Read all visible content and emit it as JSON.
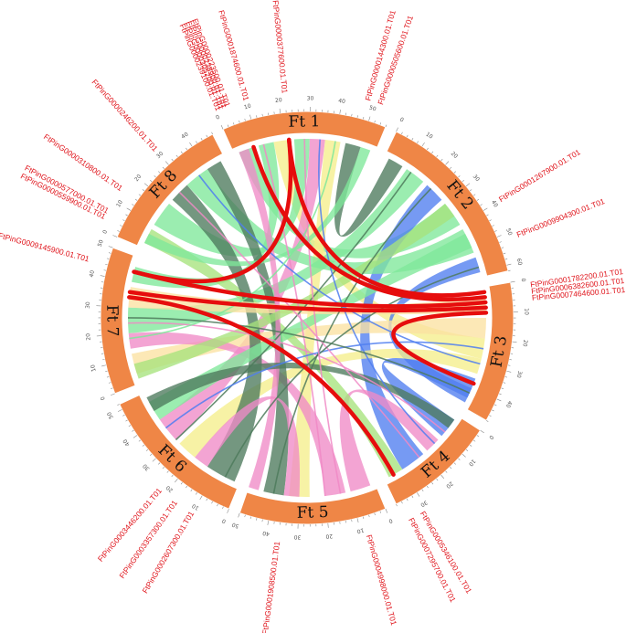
{
  "chromosomes": [
    {
      "id": "Ft1",
      "label": "Ft 1",
      "size_mb": 56
    },
    {
      "id": "Ft2",
      "label": "Ft 2",
      "size_mb": 62
    },
    {
      "id": "Ft3",
      "label": "Ft 3",
      "size_mb": 48
    },
    {
      "id": "Ft4",
      "label": "Ft 4",
      "size_mb": 38
    },
    {
      "id": "Ft5",
      "label": "Ft 5",
      "size_mb": 50
    },
    {
      "id": "Ft6",
      "label": "Ft 6",
      "size_mb": 52
    },
    {
      "id": "Ft7",
      "label": "Ft 7",
      "size_mb": 50
    },
    {
      "id": "Ft8",
      "label": "Ft 8",
      "size_mb": 48
    }
  ],
  "tick_step_mb": 10,
  "colors": {
    "chromosome": "#ef8646",
    "highlight_link": "#e60d0d",
    "link_palette": [
      "#7fe89a",
      "#f5ee8c",
      "#4d7a5c",
      "#f08ac6",
      "#4f7ef0",
      "#a6e37c",
      "#fbe1a1"
    ]
  },
  "genes": [
    {
      "label": "FtPinG0001874600.01.T01",
      "chr": "Ft1",
      "pos_mb": 10
    },
    {
      "label": "FtPinG0000377600.01.T01",
      "chr": "Ft1",
      "pos_mb": 22
    },
    {
      "label": "FtPinG0000144300.01.T01",
      "chr": "Ft1",
      "pos_mb": 48
    },
    {
      "label": "FtPinG0000505600.01.T01",
      "chr": "Ft1",
      "pos_mb": 52
    },
    {
      "label": "FtPinG0001267900.01.T01",
      "chr": "Ft2",
      "pos_mb": 40
    },
    {
      "label": "FtPinG0009904300.01.T01",
      "chr": "Ft2",
      "pos_mb": 52
    },
    {
      "label": "FtPinG0001782200.01.T01",
      "chr": "Ft3",
      "pos_mb": 2
    },
    {
      "label": "FtPinG0006382600.01.T01",
      "chr": "Ft3",
      "pos_mb": 4
    },
    {
      "label": "FtPinG0007464600.01.T01",
      "chr": "Ft3",
      "pos_mb": 6
    },
    {
      "label": "FtPinG0005346100.01.T01",
      "chr": "Ft4",
      "pos_mb": 32
    },
    {
      "label": "FtPinG0007295700.01.T01",
      "chr": "Ft4",
      "pos_mb": 36
    },
    {
      "label": "FtPinG0004998000.01.T01",
      "chr": "Ft5",
      "pos_mb": 8
    },
    {
      "label": "FtPinG0001908500.01.T01",
      "chr": "Ft5",
      "pos_mb": 36
    },
    {
      "label": "FtPinG0003446200.01.T01",
      "chr": "Ft6",
      "pos_mb": 22
    },
    {
      "label": "FtPinG0003357300.01.T01",
      "chr": "Ft6",
      "pos_mb": 16
    },
    {
      "label": "FtPinG0002607300.01.T01",
      "chr": "Ft6",
      "pos_mb": 10
    },
    {
      "label": "FtPinG0009145900.01.T01",
      "chr": "Ft7",
      "pos_mb": 44
    },
    {
      "label": "FtPinG0000310800.01.T01",
      "chr": "Ft8",
      "pos_mb": 14
    },
    {
      "label": "FtPinG0000577000.01.T01",
      "chr": "Ft8",
      "pos_mb": 6
    },
    {
      "label": "FtPinG0000559900.01.T01",
      "chr": "Ft8",
      "pos_mb": 4
    },
    {
      "label": "FtPinG0000246200.01.T01",
      "chr": "Ft8",
      "pos_mb": 30
    },
    {
      "label": "FtPinG0000239100.01.T01",
      "chr": "Ft1",
      "pos_mb": 1
    },
    {
      "label": "FtPinG0000305200.01.T01",
      "chr": "Ft1",
      "pos_mb": 2
    },
    {
      "label": "FtPinG0000238900.01.T01",
      "chr": "Ft1",
      "pos_mb": 3
    },
    {
      "label": "FtPinG0000223500.01.T01",
      "chr": "Ft1",
      "pos_mb": 4
    }
  ],
  "highlight_links": [
    {
      "from": {
        "chr": "Ft1",
        "pos_mb": 8
      },
      "to": {
        "chr": "Ft3",
        "pos_mb": 4
      }
    },
    {
      "from": {
        "chr": "Ft1",
        "pos_mb": 22
      },
      "to": {
        "chr": "Ft3",
        "pos_mb": 2
      }
    },
    {
      "from": {
        "chr": "Ft1",
        "pos_mb": 22
      },
      "to": {
        "chr": "Ft7",
        "pos_mb": 44
      }
    },
    {
      "from": {
        "chr": "Ft7",
        "pos_mb": 44
      },
      "to": {
        "chr": "Ft3",
        "pos_mb": 6
      }
    },
    {
      "from": {
        "chr": "Ft7",
        "pos_mb": 36
      },
      "to": {
        "chr": "Ft3",
        "pos_mb": 8
      }
    },
    {
      "from": {
        "chr": "Ft7",
        "pos_mb": 34
      },
      "to": {
        "chr": "Ft4",
        "pos_mb": 34
      }
    },
    {
      "from": {
        "chr": "Ft3",
        "pos_mb": 10
      },
      "to": {
        "chr": "Ft3",
        "pos_mb": 38
      }
    }
  ],
  "synteny_blocks": [
    {
      "a": [
        "Ft1",
        2,
        8
      ],
      "b": [
        "Ft2",
        30,
        40
      ],
      "color": 0
    },
    {
      "a": [
        "Ft1",
        10,
        16
      ],
      "b": [
        "Ft7",
        40,
        46
      ],
      "color": 0
    },
    {
      "a": [
        "Ft1",
        16,
        22
      ],
      "b": [
        "Ft3",
        20,
        28
      ],
      "color": 1
    },
    {
      "a": [
        "Ft1",
        24,
        30
      ],
      "b": [
        "Ft8",
        10,
        20
      ],
      "color": 0
    },
    {
      "a": [
        "Ft1",
        30,
        36
      ],
      "b": [
        "Ft6",
        30,
        40
      ],
      "color": 3
    },
    {
      "a": [
        "Ft1",
        36,
        42
      ],
      "b": [
        "Ft5",
        26,
        34
      ],
      "color": 1
    },
    {
      "a": [
        "Ft1",
        44,
        50
      ],
      "b": [
        "Ft2",
        2,
        8
      ],
      "color": 2
    },
    {
      "a": [
        "Ft2",
        10,
        18
      ],
      "b": [
        "Ft7",
        20,
        30
      ],
      "color": 0
    },
    {
      "a": [
        "Ft2",
        20,
        28
      ],
      "b": [
        "Ft4",
        20,
        30
      ],
      "color": 4
    },
    {
      "a": [
        "Ft2",
        42,
        52
      ],
      "b": [
        "Ft8",
        30,
        40
      ],
      "color": 0
    },
    {
      "a": [
        "Ft2",
        54,
        60
      ],
      "b": [
        "Ft3",
        40,
        46
      ],
      "color": 4
    },
    {
      "a": [
        "Ft3",
        12,
        20
      ],
      "b": [
        "Ft7",
        4,
        12
      ],
      "color": 6
    },
    {
      "a": [
        "Ft3",
        28,
        34
      ],
      "b": [
        "Ft6",
        20,
        28
      ],
      "color": 1
    },
    {
      "a": [
        "Ft3",
        36,
        44
      ],
      "b": [
        "Ft4",
        2,
        10
      ],
      "color": 4
    },
    {
      "a": [
        "Ft4",
        12,
        18
      ],
      "b": [
        "Ft5",
        2,
        10
      ],
      "color": 3
    },
    {
      "a": [
        "Ft4",
        30,
        36
      ],
      "b": [
        "Ft8",
        2,
        8
      ],
      "color": 5
    },
    {
      "a": [
        "Ft5",
        12,
        20
      ],
      "b": [
        "Ft7",
        14,
        20
      ],
      "color": 3
    },
    {
      "a": [
        "Ft5",
        36,
        44
      ],
      "b": [
        "Ft8",
        40,
        46
      ],
      "color": 2
    },
    {
      "a": [
        "Ft6",
        2,
        14
      ],
      "b": [
        "Ft8",
        22,
        30
      ],
      "color": 2
    },
    {
      "a": [
        "Ft6",
        40,
        48
      ],
      "b": [
        "Ft2",
        44,
        50
      ],
      "color": 0
    },
    {
      "a": [
        "Ft7",
        30,
        38
      ],
      "b": [
        "Ft3",
        4,
        10
      ],
      "color": 6
    },
    {
      "a": [
        "Ft8",
        2,
        6
      ],
      "b": [
        "Ft1",
        50,
        54
      ],
      "color": 0
    },
    {
      "a": [
        "Ft5",
        46,
        50
      ],
      "b": [
        "Ft1",
        2,
        6
      ],
      "color": 3
    },
    {
      "a": [
        "Ft6",
        14,
        20
      ],
      "b": [
        "Ft5",
        30,
        36
      ],
      "color": 3
    },
    {
      "a": [
        "Ft2",
        30,
        36
      ],
      "b": [
        "Ft7",
        2,
        8
      ],
      "color": 5
    },
    {
      "a": [
        "Ft4",
        2,
        6
      ],
      "b": [
        "Ft6",
        44,
        50
      ],
      "color": 2
    }
  ]
}
